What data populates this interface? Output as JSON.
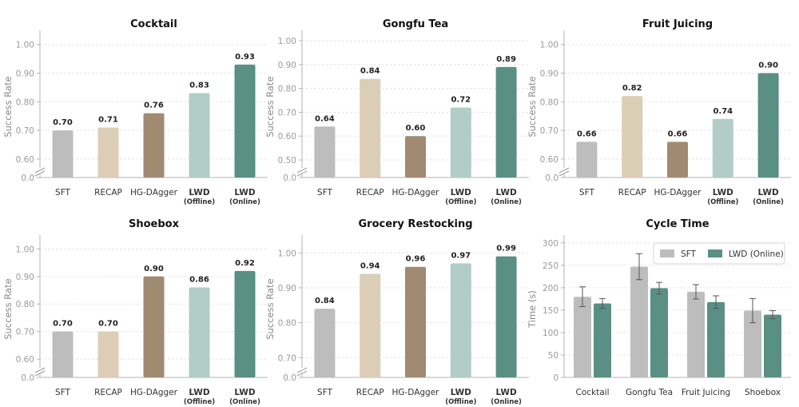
{
  "chart_data": [
    {
      "type": "bar",
      "title": "Cocktail",
      "ylabel": "Success Rate",
      "categories": [
        "SFT",
        "RECAP",
        "HG-DAgger",
        "LWD",
        "LWD"
      ],
      "category_sublabels": [
        "",
        "",
        "",
        "(Offline)",
        "(Online)"
      ],
      "values": [
        0.7,
        0.71,
        0.76,
        0.83,
        0.93
      ],
      "value_labels": [
        "0.70",
        "0.71",
        "0.76",
        "0.83",
        "0.93"
      ],
      "ylim": [
        0.58,
        1.03
      ],
      "yticks": [
        "1.00",
        "0.90",
        "0.80",
        "0.70",
        "0.60"
      ],
      "broken_axis_base": "0.0",
      "grid": true
    },
    {
      "type": "bar",
      "title": "Gongfu Tea",
      "ylabel": "Success Rate",
      "categories": [
        "SFT",
        "RECAP",
        "HG-DAgger",
        "LWD",
        "LWD"
      ],
      "category_sublabels": [
        "",
        "",
        "",
        "(Offline)",
        "(Online)"
      ],
      "values": [
        0.64,
        0.84,
        0.6,
        0.72,
        0.89
      ],
      "value_labels": [
        "0.64",
        "0.84",
        "0.60",
        "0.72",
        "0.89"
      ],
      "ylim": [
        0.48,
        1.02
      ],
      "yticks": [
        "1.00",
        "0.90",
        "0.80",
        "0.70",
        "0.60",
        "0.50"
      ],
      "broken_axis_base": "0.0",
      "grid": true
    },
    {
      "type": "bar",
      "title": "Fruit Juicing",
      "ylabel": "Success Rate",
      "categories": [
        "SFT",
        "RECAP",
        "HG-DAgger",
        "LWD",
        "LWD"
      ],
      "category_sublabels": [
        "",
        "",
        "",
        "(Offline)",
        "(Online)"
      ],
      "values": [
        0.66,
        0.82,
        0.66,
        0.74,
        0.9
      ],
      "value_labels": [
        "0.66",
        "0.82",
        "0.66",
        "0.74",
        "0.90"
      ],
      "ylim": [
        0.58,
        1.03
      ],
      "yticks": [
        "1.00",
        "0.90",
        "0.80",
        "0.70",
        "0.60"
      ],
      "broken_axis_base": "0.0",
      "grid": true
    },
    {
      "type": "bar",
      "title": "Shoebox",
      "ylabel": "Success Rate",
      "categories": [
        "SFT",
        "RECAP",
        "HG-DAgger",
        "LWD",
        "LWD"
      ],
      "category_sublabels": [
        "",
        "",
        "",
        "(Offline)",
        "(Online)"
      ],
      "values": [
        0.7,
        0.7,
        0.9,
        0.86,
        0.92
      ],
      "value_labels": [
        "0.70",
        "0.70",
        "0.90",
        "0.86",
        "0.92"
      ],
      "ylim": [
        0.58,
        1.03
      ],
      "yticks": [
        "1.00",
        "0.90",
        "0.80",
        "0.70",
        "0.60"
      ],
      "broken_axis_base": "0.0",
      "grid": true
    },
    {
      "type": "bar",
      "title": "Grocery Restocking",
      "ylabel": "Success Rate",
      "categories": [
        "SFT",
        "RECAP",
        "HG-DAgger",
        "LWD",
        "LWD"
      ],
      "category_sublabels": [
        "",
        "",
        "",
        "(Offline)",
        "(Online)"
      ],
      "values": [
        0.84,
        0.94,
        0.96,
        0.97,
        0.99
      ],
      "value_labels": [
        "0.84",
        "0.94",
        "0.96",
        "0.97",
        "0.99"
      ],
      "ylim": [
        0.68,
        1.035
      ],
      "yticks": [
        "1.00",
        "0.90",
        "0.80",
        "0.70"
      ],
      "broken_axis_base": "0.0",
      "grid": true
    },
    {
      "type": "bar",
      "title": "Cycle Time",
      "ylabel": "Time (s)",
      "categories": [
        "Cocktail",
        "Gongfu Tea",
        "Fruit Juicing",
        "Shoebox"
      ],
      "series": [
        {
          "name": "SFT",
          "values": [
            180,
            247,
            191,
            149
          ],
          "errors": [
            22,
            29,
            16,
            27
          ]
        },
        {
          "name": "LWD (Online)",
          "values": [
            165,
            199,
            168,
            140
          ],
          "errors": [
            11,
            13,
            14,
            9
          ]
        }
      ],
      "ylim": [
        0,
        305
      ],
      "yticks": [
        "0",
        "50",
        "100",
        "150",
        "200",
        "250",
        "300"
      ],
      "legend": "top-right",
      "grid": true
    }
  ],
  "colors": {
    "SFT": "#bdbdbd",
    "RECAP": "#dccdb7",
    "HG-DAgger": "#a18a72",
    "LWD (Offline)": "#b1cdc6",
    "LWD (Online)": "#5a8f83",
    "grid": "#e6e6e6",
    "axis": "#b3b3b3",
    "tick_text": "#9a9a9a",
    "label_text": "#333333",
    "title_text": "#111111",
    "error_bar": "#555555"
  }
}
